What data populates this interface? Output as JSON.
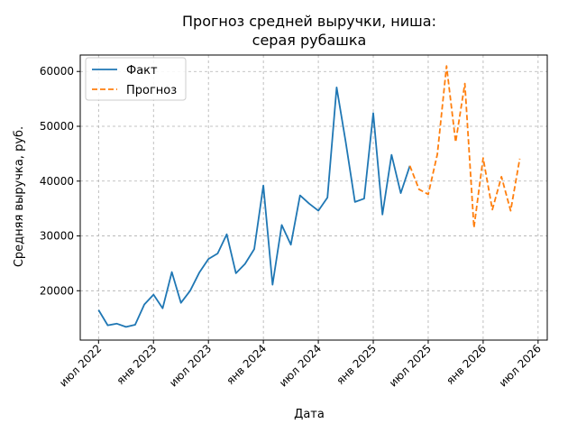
{
  "chart_data": {
    "type": "line",
    "title_lines": [
      "Прогноз средней выручки, ниша:",
      "серая рубашка"
    ],
    "xlabel": "Дата",
    "ylabel": "Средняя выручка, руб.",
    "x_ticks": [
      "июл 2022",
      "янв 2023",
      "июл 2023",
      "янв 2024",
      "июл 2024",
      "янв 2025",
      "июл 2025",
      "янв 2026",
      "июл 2026"
    ],
    "y_ticks": [
      20000,
      30000,
      40000,
      50000,
      60000
    ],
    "y_tick_labels": [
      "20000",
      "30000",
      "40000",
      "50000",
      "60000"
    ],
    "ylim": [
      11000,
      63000
    ],
    "xlim": [
      "2022-05",
      "2026-08"
    ],
    "grid": true,
    "legend_position": "top-left",
    "series": [
      {
        "name": "Факт",
        "color": "#1f77b4",
        "style": "solid",
        "points": [
          [
            "2022-07",
            16500
          ],
          [
            "2022-08",
            13700
          ],
          [
            "2022-09",
            14000
          ],
          [
            "2022-10",
            13400
          ],
          [
            "2022-11",
            13800
          ],
          [
            "2022-12",
            17500
          ],
          [
            "2023-01",
            19300
          ],
          [
            "2023-02",
            16800
          ],
          [
            "2023-03",
            23400
          ],
          [
            "2023-04",
            17800
          ],
          [
            "2023-05",
            20000
          ],
          [
            "2023-06",
            23300
          ],
          [
            "2023-07",
            25800
          ],
          [
            "2023-08",
            26800
          ],
          [
            "2023-09",
            30300
          ],
          [
            "2023-10",
            23200
          ],
          [
            "2023-11",
            24900
          ],
          [
            "2023-12",
            27600
          ],
          [
            "2024-01",
            39200
          ],
          [
            "2024-02",
            21100
          ],
          [
            "2024-03",
            32000
          ],
          [
            "2024-04",
            28400
          ],
          [
            "2024-05",
            37400
          ],
          [
            "2024-06",
            35900
          ],
          [
            "2024-07",
            34600
          ],
          [
            "2024-08",
            37000
          ],
          [
            "2024-09",
            57100
          ],
          [
            "2024-10",
            47100
          ],
          [
            "2024-11",
            36200
          ],
          [
            "2024-12",
            36800
          ],
          [
            "2025-01",
            52400
          ],
          [
            "2025-02",
            33900
          ],
          [
            "2025-03",
            44800
          ],
          [
            "2025-04",
            37800
          ],
          [
            "2025-05",
            42800
          ]
        ]
      },
      {
        "name": "Прогноз",
        "color": "#ff7f0e",
        "style": "dashed",
        "points": [
          [
            "2025-05",
            42800
          ],
          [
            "2025-06",
            38500
          ],
          [
            "2025-07",
            37600
          ],
          [
            "2025-08",
            44900
          ],
          [
            "2025-09",
            61000
          ],
          [
            "2025-10",
            47100
          ],
          [
            "2025-11",
            57800
          ],
          [
            "2025-12",
            31500
          ],
          [
            "2026-01",
            44200
          ],
          [
            "2026-02",
            34800
          ],
          [
            "2026-03",
            40800
          ],
          [
            "2026-04",
            34600
          ],
          [
            "2026-05",
            44100
          ]
        ]
      }
    ]
  }
}
